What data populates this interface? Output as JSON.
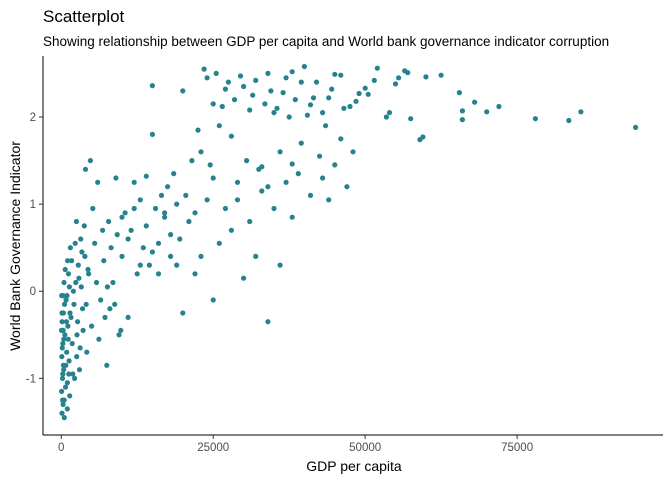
{
  "chart_data": {
    "type": "scatter",
    "title": "Scatterplot",
    "subtitle": "Showing relationship between GDP per capita and World bank governance indicator corruption",
    "xlabel": "GDP per capita",
    "ylabel": "World Bank Governance Indicator",
    "xlim": [
      -3000,
      99000
    ],
    "ylim": [
      -1.65,
      2.7
    ],
    "x_ticks": [
      0,
      25000,
      50000,
      75000
    ],
    "x_tick_labels": [
      "0",
      "25000",
      "50000",
      "75000"
    ],
    "y_ticks": [
      -1,
      0,
      1,
      2
    ],
    "y_tick_labels": [
      "-1",
      "0",
      "1",
      "2"
    ],
    "grid": false,
    "point_color": "#26828E",
    "points": [
      [
        94500,
        1.88
      ],
      [
        85500,
        2.06
      ],
      [
        83500,
        1.96
      ],
      [
        78000,
        1.98
      ],
      [
        72000,
        2.12
      ],
      [
        70000,
        2.06
      ],
      [
        68000,
        2.17
      ],
      [
        66000,
        2.07
      ],
      [
        66000,
        1.97
      ],
      [
        65500,
        2.28
      ],
      [
        62500,
        2.48
      ],
      [
        60000,
        2.46
      ],
      [
        59500,
        1.77
      ],
      [
        59000,
        1.74
      ],
      [
        57500,
        1.98
      ],
      [
        57000,
        2.51
      ],
      [
        56500,
        2.53
      ],
      [
        55500,
        2.45
      ],
      [
        55000,
        2.38
      ],
      [
        54000,
        2.05
      ],
      [
        53500,
        2.0
      ],
      [
        52000,
        2.56
      ],
      [
        51500,
        2.42
      ],
      [
        50500,
        2.26
      ],
      [
        50000,
        2.33
      ],
      [
        49000,
        2.27
      ],
      [
        48500,
        2.18
      ],
      [
        47500,
        2.12
      ],
      [
        46500,
        2.1
      ],
      [
        46000,
        2.48
      ],
      [
        45000,
        2.49
      ],
      [
        44500,
        2.32
      ],
      [
        44000,
        2.22
      ],
      [
        43500,
        1.9
      ],
      [
        43000,
        2.05
      ],
      [
        42500,
        1.55
      ],
      [
        42000,
        2.4
      ],
      [
        41500,
        2.22
      ],
      [
        41000,
        2.14
      ],
      [
        40500,
        2.02
      ],
      [
        40000,
        2.58
      ],
      [
        39500,
        2.4
      ],
      [
        39500,
        1.7
      ],
      [
        39000,
        1.35
      ],
      [
        38500,
        2.2
      ],
      [
        38000,
        1.46
      ],
      [
        38000,
        2.52
      ],
      [
        37500,
        2.0
      ],
      [
        37000,
        2.45
      ],
      [
        36500,
        2.28
      ],
      [
        36000,
        1.6
      ],
      [
        35500,
        2.1
      ],
      [
        35000,
        2.05
      ],
      [
        34500,
        2.3
      ],
      [
        34000,
        2.5
      ],
      [
        34000,
        1.2
      ],
      [
        33500,
        2.15
      ],
      [
        33000,
        1.43
      ],
      [
        32500,
        1.4
      ],
      [
        32000,
        2.42
      ],
      [
        31500,
        2.25
      ],
      [
        31000,
        2.08
      ],
      [
        30500,
        1.5
      ],
      [
        30000,
        2.35
      ],
      [
        29500,
        2.47
      ],
      [
        29000,
        1.25
      ],
      [
        28500,
        2.2
      ],
      [
        28000,
        1.78
      ],
      [
        27500,
        2.4
      ],
      [
        27000,
        2.32
      ],
      [
        26500,
        2.12
      ],
      [
        26000,
        1.9
      ],
      [
        25500,
        2.5
      ],
      [
        25000,
        2.15
      ],
      [
        25000,
        1.3
      ],
      [
        24500,
        1.45
      ],
      [
        24000,
        2.45
      ],
      [
        23500,
        2.55
      ],
      [
        23000,
        1.6
      ],
      [
        22500,
        1.85
      ],
      [
        22000,
        0.9
      ],
      [
        21500,
        1.5
      ],
      [
        21000,
        0.8
      ],
      [
        20500,
        1.1
      ],
      [
        20000,
        2.3
      ],
      [
        19500,
        0.6
      ],
      [
        19000,
        1.0
      ],
      [
        18500,
        1.35
      ],
      [
        18000,
        0.4
      ],
      [
        17500,
        1.2
      ],
      [
        17000,
        0.85
      ],
      [
        16500,
        1.1
      ],
      [
        16000,
        0.55
      ],
      [
        15500,
        0.95
      ],
      [
        15000,
        2.36
      ],
      [
        15000,
        1.8
      ],
      [
        14500,
        0.3
      ],
      [
        14000,
        1.32
      ],
      [
        13500,
        0.5
      ],
      [
        13000,
        1.05
      ],
      [
        12500,
        0.2
      ],
      [
        12000,
        1.25
      ],
      [
        11500,
        0.7
      ],
      [
        11000,
        -0.3
      ],
      [
        10500,
        0.9
      ],
      [
        10000,
        0.4
      ],
      [
        9500,
        -0.5
      ],
      [
        9000,
        1.3
      ],
      [
        8500,
        0.1
      ],
      [
        8000,
        -0.2
      ],
      [
        7800,
        0.8
      ],
      [
        7500,
        -0.85
      ],
      [
        7000,
        0.35
      ],
      [
        6500,
        -0.1
      ],
      [
        6000,
        1.25
      ],
      [
        5500,
        0.55
      ],
      [
        5000,
        -0.4
      ],
      [
        4800,
        1.5
      ],
      [
        4500,
        0.2
      ],
      [
        4200,
        -0.7
      ],
      [
        4000,
        1.4
      ],
      [
        3800,
        0.75
      ],
      [
        3500,
        -0.2
      ],
      [
        3200,
        0.6
      ],
      [
        3000,
        -0.9
      ],
      [
        2800,
        0.3
      ],
      [
        2600,
        -0.5
      ],
      [
        2400,
        0.1
      ],
      [
        2200,
        -1.0
      ],
      [
        2000,
        0.0
      ],
      [
        1800,
        -0.6
      ],
      [
        1600,
        -0.3
      ],
      [
        1500,
        0.5
      ],
      [
        1400,
        -1.2
      ],
      [
        1300,
        -0.8
      ],
      [
        1200,
        0.2
      ],
      [
        1100,
        -0.4
      ],
      [
        1000,
        -1.35
      ],
      [
        900,
        -0.7
      ],
      [
        800,
        -0.1
      ],
      [
        700,
        -1.1
      ],
      [
        600,
        -0.5
      ],
      [
        500,
        -1.45
      ],
      [
        450,
        0.1
      ],
      [
        400,
        -0.9
      ],
      [
        350,
        -0.25
      ],
      [
        300,
        -1.3
      ],
      [
        250,
        -0.6
      ],
      [
        200,
        -1.0
      ],
      [
        150,
        -0.35
      ],
      [
        120,
        -1.4
      ],
      [
        100,
        -0.75
      ],
      [
        80,
        -0.05
      ],
      [
        60,
        -1.15
      ],
      [
        40,
        -0.45
      ],
      [
        10000,
        0.85
      ],
      [
        11000,
        0.6
      ],
      [
        12000,
        0.95
      ],
      [
        13000,
        0.3
      ],
      [
        14000,
        0.75
      ],
      [
        15000,
        0.45
      ],
      [
        16000,
        0.2
      ],
      [
        17000,
        0.9
      ],
      [
        18000,
        0.65
      ],
      [
        19000,
        0.3
      ],
      [
        20000,
        -0.25
      ],
      [
        22000,
        0.2
      ],
      [
        24000,
        1.05
      ],
      [
        26000,
        0.55
      ],
      [
        28000,
        0.7
      ],
      [
        30000,
        0.15
      ],
      [
        32000,
        0.4
      ],
      [
        34000,
        -0.35
      ],
      [
        36000,
        0.3
      ],
      [
        38000,
        0.85
      ],
      [
        23000,
        0.4
      ],
      [
        25000,
        -0.1
      ],
      [
        27000,
        0.95
      ],
      [
        29000,
        1.05
      ],
      [
        31000,
        0.8
      ],
      [
        33000,
        1.15
      ],
      [
        35000,
        0.95
      ],
      [
        37000,
        1.25
      ],
      [
        41000,
        1.1
      ],
      [
        43000,
        1.3
      ],
      [
        45000,
        1.45
      ],
      [
        47000,
        1.2
      ],
      [
        48000,
        1.6
      ],
      [
        44000,
        1.05
      ],
      [
        46000,
        1.75
      ],
      [
        5200,
        0.95
      ],
      [
        5800,
        0.1
      ],
      [
        6200,
        -0.55
      ],
      [
        6800,
        0.7
      ],
      [
        7200,
        -0.3
      ],
      [
        7600,
        0.05
      ],
      [
        8200,
        0.5
      ],
      [
        8800,
        -0.15
      ],
      [
        9200,
        0.65
      ],
      [
        9800,
        -0.45
      ],
      [
        3300,
        0.05
      ],
      [
        3600,
        -0.45
      ],
      [
        3900,
        0.4
      ],
      [
        4100,
        -0.15
      ],
      [
        4400,
        0.25
      ],
      [
        2500,
        0.8
      ],
      [
        2700,
        -0.35
      ],
      [
        2900,
        0.15
      ],
      [
        3100,
        -0.65
      ],
      [
        3400,
        0.45
      ],
      [
        1700,
        0.35
      ],
      [
        1900,
        -0.95
      ],
      [
        2100,
        -0.15
      ],
      [
        2300,
        0.55
      ],
      [
        2550,
        -0.75
      ],
      [
        1050,
        0.35
      ],
      [
        1150,
        -0.55
      ],
      [
        1250,
        -0.95
      ],
      [
        1350,
        0.05
      ],
      [
        1450,
        -0.25
      ],
      [
        650,
        0.25
      ],
      [
        750,
        -0.85
      ],
      [
        850,
        -0.35
      ],
      [
        950,
        -0.05
      ],
      [
        1020,
        -1.05
      ],
      [
        300,
        -0.05
      ],
      [
        350,
        -0.85
      ],
      [
        420,
        -0.55
      ],
      [
        480,
        -1.25
      ],
      [
        540,
        -0.15
      ],
      [
        120,
        -0.25
      ],
      [
        180,
        -0.65
      ],
      [
        220,
        -1.25
      ],
      [
        260,
        -0.95
      ],
      [
        320,
        -0.45
      ]
    ]
  }
}
